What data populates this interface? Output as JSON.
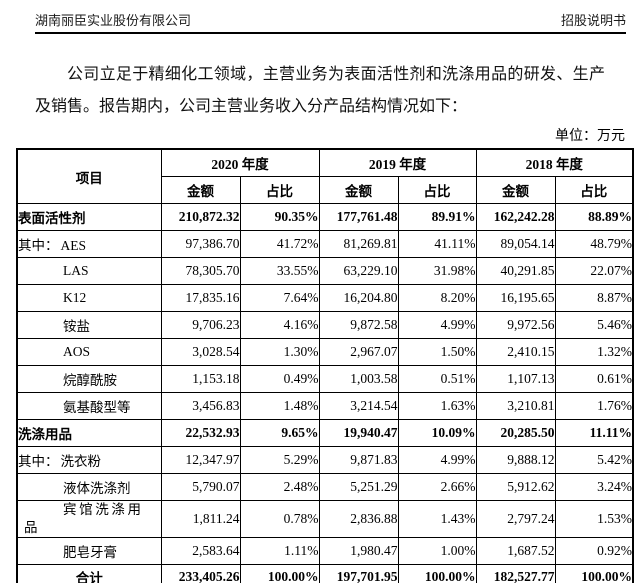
{
  "page": {
    "header": {
      "company": "湖南丽臣实业股份有限公司",
      "doc_label": "招股说明书"
    },
    "intro_paragraph": "公司立足于精细化工领域，主营业务为表面活性剂和洗涤用品的研发、生产及销售。报告期内，公司主营业务收入分产品结构情况如下：",
    "unit_note": "单位：万元"
  },
  "table": {
    "columns": {
      "item": "项目",
      "amount": "金额",
      "ratio": "占比"
    },
    "year_groups": [
      "2020 年度",
      "2019 年度",
      "2018 年度"
    ],
    "rows": [
      {
        "label": "表面活性剂",
        "type": "category",
        "values": [
          "210,872.32",
          "90.35%",
          "177,761.48",
          "89.91%",
          "162,242.28",
          "88.89%"
        ]
      },
      {
        "label": "AES",
        "prefix": "其中：",
        "type": "sub",
        "values": [
          "97,386.70",
          "41.72%",
          "81,269.81",
          "41.11%",
          "89,054.14",
          "48.79%"
        ]
      },
      {
        "label": "LAS",
        "type": "sub",
        "values": [
          "78,305.70",
          "33.55%",
          "63,229.10",
          "31.98%",
          "40,291.85",
          "22.07%"
        ]
      },
      {
        "label": "K12",
        "type": "sub",
        "values": [
          "17,835.16",
          "7.64%",
          "16,204.80",
          "8.20%",
          "16,195.65",
          "8.87%"
        ]
      },
      {
        "label": "铵盐",
        "type": "sub",
        "values": [
          "9,706.23",
          "4.16%",
          "9,872.58",
          "4.99%",
          "9,972.56",
          "5.46%"
        ]
      },
      {
        "label": "AOS",
        "type": "sub",
        "values": [
          "3,028.54",
          "1.30%",
          "2,967.07",
          "1.50%",
          "2,410.15",
          "1.32%"
        ]
      },
      {
        "label": "烷醇酰胺",
        "type": "sub",
        "values": [
          "1,153.18",
          "0.49%",
          "1,003.58",
          "0.51%",
          "1,107.13",
          "0.61%"
        ]
      },
      {
        "label": "氨基酸型等",
        "type": "sub",
        "values": [
          "3,456.83",
          "1.48%",
          "3,214.54",
          "1.63%",
          "3,210.81",
          "1.76%"
        ]
      },
      {
        "label": "洗涤用品",
        "type": "category",
        "values": [
          "22,532.93",
          "9.65%",
          "19,940.47",
          "10.09%",
          "20,285.50",
          "11.11%"
        ]
      },
      {
        "label": "洗衣粉",
        "prefix": "其中：",
        "type": "sub",
        "values": [
          "12,347.97",
          "5.29%",
          "9,871.83",
          "4.99%",
          "9,888.12",
          "5.42%"
        ]
      },
      {
        "label": "液体洗涤剂",
        "type": "sub",
        "values": [
          "5,790.07",
          "2.48%",
          "5,251.29",
          "2.66%",
          "5,912.62",
          "3.24%"
        ]
      },
      {
        "label": "宾馆洗涤用品",
        "type": "sub",
        "wrap": true,
        "values": [
          "1,811.24",
          "0.78%",
          "2,836.88",
          "1.43%",
          "2,797.24",
          "1.53%"
        ]
      },
      {
        "label": "肥皂牙膏",
        "type": "sub",
        "values": [
          "2,583.64",
          "1.11%",
          "1,980.47",
          "1.00%",
          "1,687.52",
          "0.92%"
        ]
      },
      {
        "label": "合计",
        "type": "total",
        "values": [
          "233,405.26",
          "100.00%",
          "197,701.95",
          "100.00%",
          "182,527.77",
          "100.00%"
        ]
      }
    ]
  }
}
